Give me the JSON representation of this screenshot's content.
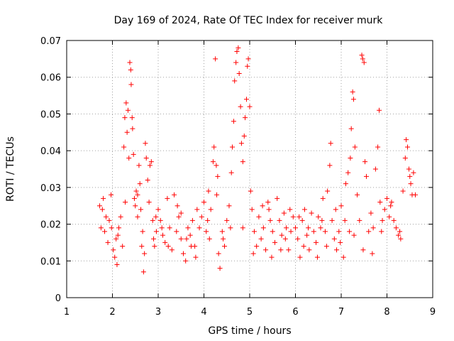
{
  "chart_data": {
    "type": "scatter",
    "title": "Day 169 of 2024, Rate Of TEC Index for receiver murk",
    "xlabel": "GPS time / hours",
    "ylabel": "ROTI / TECUs",
    "xlim": [
      1,
      9
    ],
    "ylim": [
      0,
      0.07
    ],
    "xticks": [
      "1",
      "2",
      "3",
      "4",
      "5",
      "6",
      "7",
      "8",
      "9"
    ],
    "yticks": [
      "0",
      "0.01",
      "0.02",
      "0.03",
      "0.04",
      "0.05",
      "0.06",
      "0.07"
    ],
    "grid": true,
    "marker": "+",
    "color": "#ff0000",
    "series": [
      {
        "name": "ROTI",
        "points": [
          [
            1.72,
            0.025
          ],
          [
            1.75,
            0.019
          ],
          [
            1.78,
            0.024
          ],
          [
            1.8,
            0.027
          ],
          [
            1.83,
            0.018
          ],
          [
            1.86,
            0.022
          ],
          [
            1.9,
            0.015
          ],
          [
            1.93,
            0.021
          ],
          [
            1.97,
            0.028
          ],
          [
            1.98,
            0.019
          ],
          [
            2.02,
            0.013
          ],
          [
            2.05,
            0.011
          ],
          [
            2.08,
            0.016
          ],
          [
            2.1,
            0.009
          ],
          [
            2.14,
            0.019
          ],
          [
            2.18,
            0.022
          ],
          [
            2.22,
            0.014
          ],
          [
            2.25,
            0.041
          ],
          [
            2.27,
            0.049
          ],
          [
            2.3,
            0.053
          ],
          [
            2.32,
            0.045
          ],
          [
            2.34,
            0.051
          ],
          [
            2.36,
            0.038
          ],
          [
            2.38,
            0.064
          ],
          [
            2.4,
            0.062
          ],
          [
            2.41,
            0.058
          ],
          [
            2.43,
            0.049
          ],
          [
            2.44,
            0.046
          ],
          [
            2.46,
            0.039
          ],
          [
            2.48,
            0.027
          ],
          [
            2.5,
            0.025
          ],
          [
            2.52,
            0.029
          ],
          [
            2.55,
            0.022
          ],
          [
            2.58,
            0.036
          ],
          [
            2.6,
            0.031
          ],
          [
            2.62,
            0.024
          ],
          [
            2.64,
            0.014
          ],
          [
            2.66,
            0.018
          ],
          [
            2.68,
            0.007
          ],
          [
            2.7,
            0.012
          ],
          [
            2.72,
            0.042
          ],
          [
            2.74,
            0.038
          ],
          [
            2.77,
            0.032
          ],
          [
            2.8,
            0.026
          ],
          [
            2.82,
            0.036
          ],
          [
            2.85,
            0.037
          ],
          [
            2.88,
            0.021
          ],
          [
            2.9,
            0.016
          ],
          [
            2.92,
            0.014
          ],
          [
            2.96,
            0.018
          ],
          [
            3.0,
            0.024
          ],
          [
            3.05,
            0.021
          ],
          [
            3.1,
            0.017
          ],
          [
            3.15,
            0.015
          ],
          [
            3.2,
            0.027
          ],
          [
            3.25,
            0.019
          ],
          [
            3.3,
            0.013
          ],
          [
            3.35,
            0.028
          ],
          [
            3.4,
            0.018
          ],
          [
            3.45,
            0.022
          ],
          [
            3.5,
            0.016
          ],
          [
            3.55,
            0.012
          ],
          [
            3.6,
            0.01
          ],
          [
            3.65,
            0.019
          ],
          [
            3.7,
            0.017
          ],
          [
            3.75,
            0.021
          ],
          [
            3.8,
            0.014
          ],
          [
            3.85,
            0.024
          ],
          [
            3.9,
            0.019
          ],
          [
            3.95,
            0.022
          ],
          [
            4.0,
            0.026
          ],
          [
            4.05,
            0.018
          ],
          [
            4.1,
            0.029
          ],
          [
            4.15,
            0.024
          ],
          [
            4.2,
            0.037
          ],
          [
            4.22,
            0.041
          ],
          [
            4.25,
            0.065
          ],
          [
            4.27,
            0.036
          ],
          [
            4.3,
            0.033
          ],
          [
            4.32,
            0.012
          ],
          [
            4.35,
            0.008
          ],
          [
            4.4,
            0.018
          ],
          [
            4.45,
            0.014
          ],
          [
            4.5,
            0.021
          ],
          [
            4.55,
            0.025
          ],
          [
            4.6,
            0.034
          ],
          [
            4.62,
            0.041
          ],
          [
            4.65,
            0.048
          ],
          [
            4.67,
            0.059
          ],
          [
            4.7,
            0.064
          ],
          [
            4.72,
            0.067
          ],
          [
            4.75,
            0.068
          ],
          [
            4.77,
            0.061
          ],
          [
            4.8,
            0.052
          ],
          [
            4.82,
            0.042
          ],
          [
            4.85,
            0.037
          ],
          [
            4.88,
            0.044
          ],
          [
            4.9,
            0.049
          ],
          [
            4.93,
            0.054
          ],
          [
            4.95,
            0.063
          ],
          [
            4.97,
            0.065
          ],
          [
            5.0,
            0.052
          ],
          [
            5.02,
            0.029
          ],
          [
            5.05,
            0.024
          ],
          [
            5.1,
            0.018
          ],
          [
            5.15,
            0.014
          ],
          [
            5.2,
            0.022
          ],
          [
            5.25,
            0.016
          ],
          [
            5.3,
            0.019
          ],
          [
            5.35,
            0.013
          ],
          [
            5.4,
            0.026
          ],
          [
            5.45,
            0.021
          ],
          [
            5.5,
            0.018
          ],
          [
            5.55,
            0.015
          ],
          [
            5.6,
            0.027
          ],
          [
            5.65,
            0.021
          ],
          [
            5.7,
            0.017
          ],
          [
            5.75,
            0.023
          ],
          [
            5.8,
            0.019
          ],
          [
            5.85,
            0.013
          ],
          [
            5.9,
            0.018
          ],
          [
            5.95,
            0.022
          ],
          [
            6.0,
            0.019
          ],
          [
            6.05,
            0.016
          ],
          [
            6.1,
            0.011
          ],
          [
            6.15,
            0.021
          ],
          [
            6.2,
            0.024
          ],
          [
            6.25,
            0.017
          ],
          [
            6.3,
            0.013
          ],
          [
            6.35,
            0.023
          ],
          [
            6.4,
            0.018
          ],
          [
            6.45,
            0.015
          ],
          [
            6.5,
            0.022
          ],
          [
            6.55,
            0.019
          ],
          [
            6.6,
            0.027
          ],
          [
            6.65,
            0.018
          ],
          [
            6.7,
            0.029
          ],
          [
            6.75,
            0.036
          ],
          [
            6.77,
            0.042
          ],
          [
            6.8,
            0.021
          ],
          [
            6.85,
            0.016
          ],
          [
            6.9,
            0.013
          ],
          [
            6.95,
            0.018
          ],
          [
            7.0,
            0.025
          ],
          [
            7.05,
            0.011
          ],
          [
            7.1,
            0.031
          ],
          [
            7.15,
            0.034
          ],
          [
            7.2,
            0.038
          ],
          [
            7.22,
            0.046
          ],
          [
            7.25,
            0.056
          ],
          [
            7.27,
            0.054
          ],
          [
            7.3,
            0.041
          ],
          [
            7.35,
            0.028
          ],
          [
            7.4,
            0.021
          ],
          [
            7.45,
            0.066
          ],
          [
            7.47,
            0.065
          ],
          [
            7.5,
            0.064
          ],
          [
            7.52,
            0.037
          ],
          [
            7.55,
            0.033
          ],
          [
            7.6,
            0.018
          ],
          [
            7.65,
            0.023
          ],
          [
            7.7,
            0.019
          ],
          [
            7.75,
            0.035
          ],
          [
            7.8,
            0.041
          ],
          [
            7.83,
            0.051
          ],
          [
            7.85,
            0.026
          ],
          [
            7.9,
            0.021
          ],
          [
            7.95,
            0.024
          ],
          [
            8.0,
            0.027
          ],
          [
            8.05,
            0.022
          ],
          [
            8.1,
            0.026
          ],
          [
            8.15,
            0.021
          ],
          [
            8.2,
            0.019
          ],
          [
            8.25,
            0.017
          ],
          [
            8.3,
            0.016
          ],
          [
            8.35,
            0.029
          ],
          [
            8.4,
            0.038
          ],
          [
            8.42,
            0.043
          ],
          [
            8.45,
            0.041
          ],
          [
            8.48,
            0.035
          ],
          [
            8.5,
            0.033
          ],
          [
            8.52,
            0.031
          ],
          [
            8.55,
            0.028
          ],
          [
            8.58,
            0.034
          ],
          [
            8.62,
            0.028
          ],
          [
            2.12,
            0.017
          ],
          [
            2.28,
            0.026
          ],
          [
            2.55,
            0.028
          ],
          [
            2.95,
            0.022
          ],
          [
            3.08,
            0.019
          ],
          [
            3.22,
            0.014
          ],
          [
            3.42,
            0.025
          ],
          [
            3.62,
            0.016
          ],
          [
            3.82,
            0.011
          ],
          [
            4.08,
            0.021
          ],
          [
            4.28,
            0.028
          ],
          [
            4.42,
            0.016
          ],
          [
            4.58,
            0.019
          ],
          [
            4.85,
            0.019
          ],
          [
            5.08,
            0.012
          ],
          [
            5.28,
            0.025
          ],
          [
            5.48,
            0.011
          ],
          [
            5.68,
            0.013
          ],
          [
            5.88,
            0.024
          ],
          [
            6.08,
            0.022
          ],
          [
            6.28,
            0.019
          ],
          [
            6.48,
            0.011
          ],
          [
            6.68,
            0.014
          ],
          [
            6.88,
            0.024
          ],
          [
            7.08,
            0.021
          ],
          [
            7.28,
            0.017
          ],
          [
            7.48,
            0.013
          ],
          [
            7.68,
            0.012
          ],
          [
            7.88,
            0.018
          ],
          [
            8.08,
            0.025
          ],
          [
            8.28,
            0.018
          ],
          [
            3.5,
            0.023
          ],
          [
            3.72,
            0.014
          ],
          [
            4.12,
            0.016
          ],
          [
            5.42,
            0.024
          ],
          [
            5.78,
            0.016
          ],
          [
            6.18,
            0.014
          ],
          [
            6.58,
            0.021
          ],
          [
            6.98,
            0.015
          ],
          [
            7.18,
            0.018
          ]
        ]
      }
    ]
  }
}
